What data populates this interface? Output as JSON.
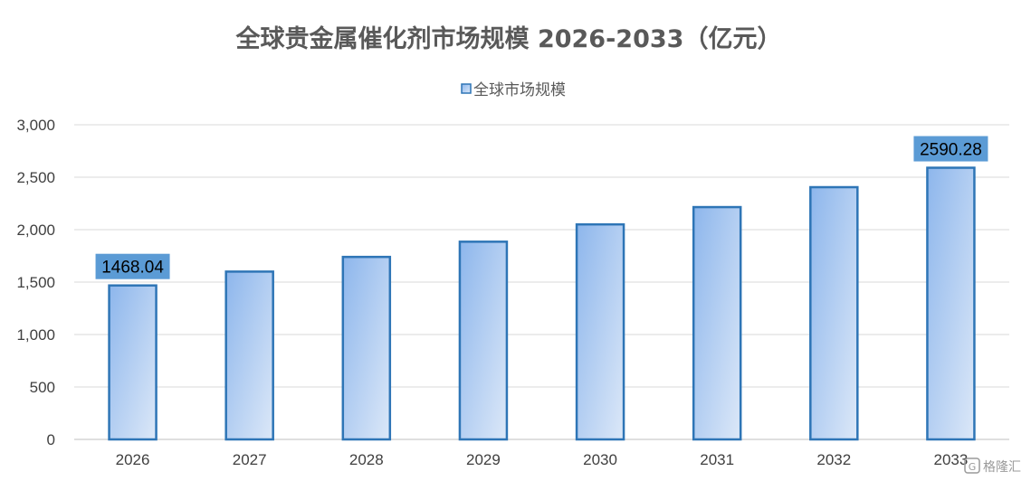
{
  "chart_data": {
    "type": "bar",
    "title": "全球贵金属催化剂市场规模 2026-2033（亿元）",
    "categories": [
      "2026",
      "2027",
      "2028",
      "2029",
      "2030",
      "2031",
      "2032",
      "2033"
    ],
    "series": [
      {
        "name": "全球市场规模",
        "values": [
          1468.04,
          1600,
          1740,
          1885,
          2050,
          2215,
          2405,
          2590.28
        ]
      }
    ],
    "data_labels": [
      {
        "category": "2026",
        "text": "1468.04"
      },
      {
        "category": "2033",
        "text": "2590.28"
      }
    ],
    "y_ticks": [
      "0",
      "500",
      "1,000",
      "1,500",
      "2,000",
      "2,500",
      "3,000"
    ],
    "ylim": [
      0,
      3000
    ],
    "xlabel": "",
    "ylabel": "",
    "grid": true,
    "legend_position": "top-center",
    "colors": {
      "bar_fill_top": "#8DB6EC",
      "bar_fill_bottom": "#DCE8F8",
      "bar_border": "#2E75B6",
      "label_bg": "#5B9BD5",
      "grid": "#D9D9D9"
    }
  },
  "watermark": {
    "text": "格隆汇",
    "icon": "gelonghui-logo-icon"
  }
}
